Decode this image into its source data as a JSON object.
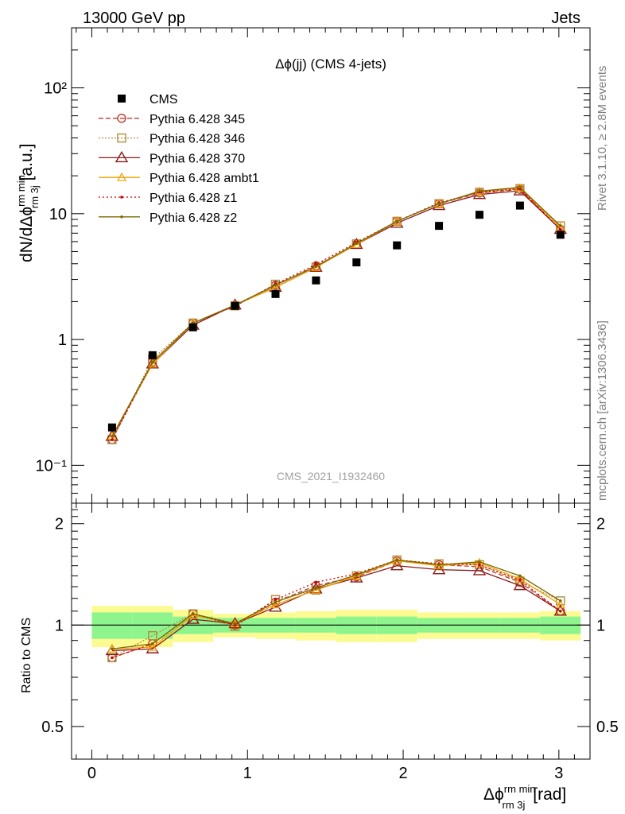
{
  "header": {
    "left": "13000 GeV pp",
    "right": "Jets"
  },
  "side": {
    "rivet": "Rivet 3.1.10, ≥ 2.8M events",
    "mcplots": "mcplots.cern.ch [arXiv:1306.3436]"
  },
  "plot_title": "Δϕ(jj) (CMS 4-jets)",
  "watermark": "CMS_2021_I1932460",
  "colors": {
    "cms": "#000000",
    "p345": "#c0392b",
    "p346": "#b08d3e",
    "p370": "#8b1a1a",
    "ambt1": "#f5a000",
    "z1": "#cc0000",
    "z2": "#7a6a00",
    "band_inner": "#8ef58e",
    "band_outer": "#fbfb92"
  },
  "chart_data": [
    {
      "type": "scatter",
      "panel": "main",
      "ylabel": "dN/dΔϕ^{rm min}_{rm 3j} [a.u.]",
      "yscale": "log",
      "xlim": [
        -0.13,
        3.2
      ],
      "ylim": [
        0.05,
        300
      ],
      "y_ticks": [
        {
          "value": 0.1,
          "label": "10⁻¹"
        },
        {
          "value": 1,
          "label": "1"
        },
        {
          "value": 10,
          "label": "10"
        },
        {
          "value": 100,
          "label": "10²"
        }
      ],
      "legend_placement": "top-left",
      "x": [
        0.13,
        0.39,
        0.65,
        0.92,
        1.18,
        1.44,
        1.7,
        1.96,
        2.23,
        2.49,
        2.75,
        3.01
      ],
      "series": [
        {
          "name": "CMS",
          "key": "cms",
          "marker": "square",
          "values": [
            0.2,
            0.75,
            1.25,
            1.85,
            2.3,
            2.95,
            4.1,
            5.6,
            8.0,
            9.8,
            11.6,
            6.8
          ]
        },
        {
          "name": "Pythia 6.428 345",
          "key": "p345",
          "marker": "circle",
          "dash": "6,3",
          "values": [
            0.16,
            0.66,
            1.35,
            1.85,
            2.7,
            3.85,
            5.7,
            8.7,
            12.0,
            14.6,
            15.6,
            7.5
          ]
        },
        {
          "name": "Pythia 6.428 346",
          "key": "p346",
          "marker": "square-open",
          "dash": "2,2",
          "values": [
            0.16,
            0.7,
            1.35,
            1.85,
            2.75,
            3.75,
            5.75,
            8.7,
            12.0,
            14.8,
            15.8,
            8.0
          ]
        },
        {
          "name": "Pythia 6.428 370",
          "key": "p370",
          "marker": "triangle",
          "dash": "",
          "values": [
            0.17,
            0.64,
            1.3,
            1.88,
            2.6,
            3.75,
            5.7,
            8.4,
            11.6,
            14.2,
            15.2,
            7.5
          ]
        },
        {
          "name": "Pythia 6.428 ambt1",
          "key": "ambt1",
          "marker": "triangle-small",
          "dash": "",
          "values": [
            0.17,
            0.64,
            1.35,
            1.88,
            2.6,
            3.75,
            5.7,
            8.7,
            12.0,
            15.0,
            16.0,
            7.8
          ]
        },
        {
          "name": "Pythia 6.428 z1",
          "key": "z1",
          "marker": "dot",
          "dash": "2,3",
          "values": [
            0.16,
            0.66,
            1.35,
            1.85,
            2.75,
            3.95,
            5.9,
            8.7,
            12.2,
            14.8,
            15.8,
            7.5
          ]
        },
        {
          "name": "Pythia 6.428 z2",
          "key": "z2",
          "marker": "dot",
          "dash": "",
          "values": [
            0.17,
            0.66,
            1.35,
            1.88,
            2.7,
            3.8,
            5.8,
            8.7,
            12.0,
            15.1,
            16.2,
            8.0
          ]
        }
      ]
    },
    {
      "type": "line",
      "panel": "ratio",
      "ylabel": "Ratio to CMS",
      "xlabel": "Δϕ^{rm min}_{rm 3j} [rad]",
      "xlim": [
        -0.13,
        3.2
      ],
      "ylim": [
        0.4,
        2.3
      ],
      "x_ticks": [
        0,
        1,
        2,
        3
      ],
      "y_ticks": [
        0.5,
        1,
        2
      ],
      "x": [
        0.13,
        0.39,
        0.65,
        0.92,
        1.18,
        1.44,
        1.7,
        1.96,
        2.23,
        2.49,
        2.75,
        3.01
      ],
      "band_edges": [
        0.0,
        0.26,
        0.52,
        0.78,
        1.05,
        1.31,
        1.57,
        1.83,
        2.09,
        2.36,
        2.62,
        2.88,
        3.14
      ],
      "band_inner": [
        0.09,
        0.09,
        0.06,
        0.05,
        0.05,
        0.05,
        0.06,
        0.06,
        0.05,
        0.05,
        0.05,
        0.06
      ],
      "band_outer": [
        0.14,
        0.14,
        0.11,
        0.08,
        0.09,
        0.1,
        0.11,
        0.11,
        0.09,
        0.09,
        0.09,
        0.1
      ],
      "series": [
        {
          "name": "Pythia 6.428 345",
          "key": "p345",
          "marker": "circle",
          "dash": "6,3",
          "values": [
            0.8,
            0.88,
            1.08,
            1.0,
            1.17,
            1.31,
            1.39,
            1.55,
            1.51,
            1.49,
            1.34,
            1.1
          ]
        },
        {
          "name": "Pythia 6.428 346",
          "key": "p346",
          "marker": "square-open",
          "dash": "2,2",
          "values": [
            0.8,
            0.93,
            1.08,
            0.99,
            1.19,
            1.27,
            1.4,
            1.56,
            1.52,
            1.51,
            1.35,
            1.18
          ]
        },
        {
          "name": "Pythia 6.428 370",
          "key": "p370",
          "marker": "triangle",
          "dash": "",
          "values": [
            0.84,
            0.85,
            1.04,
            1.01,
            1.13,
            1.28,
            1.38,
            1.5,
            1.46,
            1.45,
            1.31,
            1.1
          ]
        },
        {
          "name": "Pythia 6.428 ambt1",
          "key": "ambt1",
          "marker": "triangle-small",
          "dash": "",
          "values": [
            0.85,
            0.86,
            1.07,
            1.01,
            1.15,
            1.27,
            1.4,
            1.55,
            1.5,
            1.53,
            1.37,
            1.15
          ]
        },
        {
          "name": "Pythia 6.428 z1",
          "key": "z1",
          "marker": "dot",
          "dash": "2,3",
          "values": [
            0.8,
            0.88,
            1.08,
            1.0,
            1.19,
            1.34,
            1.42,
            1.56,
            1.52,
            1.51,
            1.36,
            1.1
          ]
        },
        {
          "name": "Pythia 6.428 z2",
          "key": "z2",
          "marker": "dot",
          "dash": "",
          "values": [
            0.85,
            0.88,
            1.08,
            1.01,
            1.17,
            1.29,
            1.41,
            1.56,
            1.51,
            1.54,
            1.4,
            1.18
          ]
        }
      ]
    }
  ]
}
